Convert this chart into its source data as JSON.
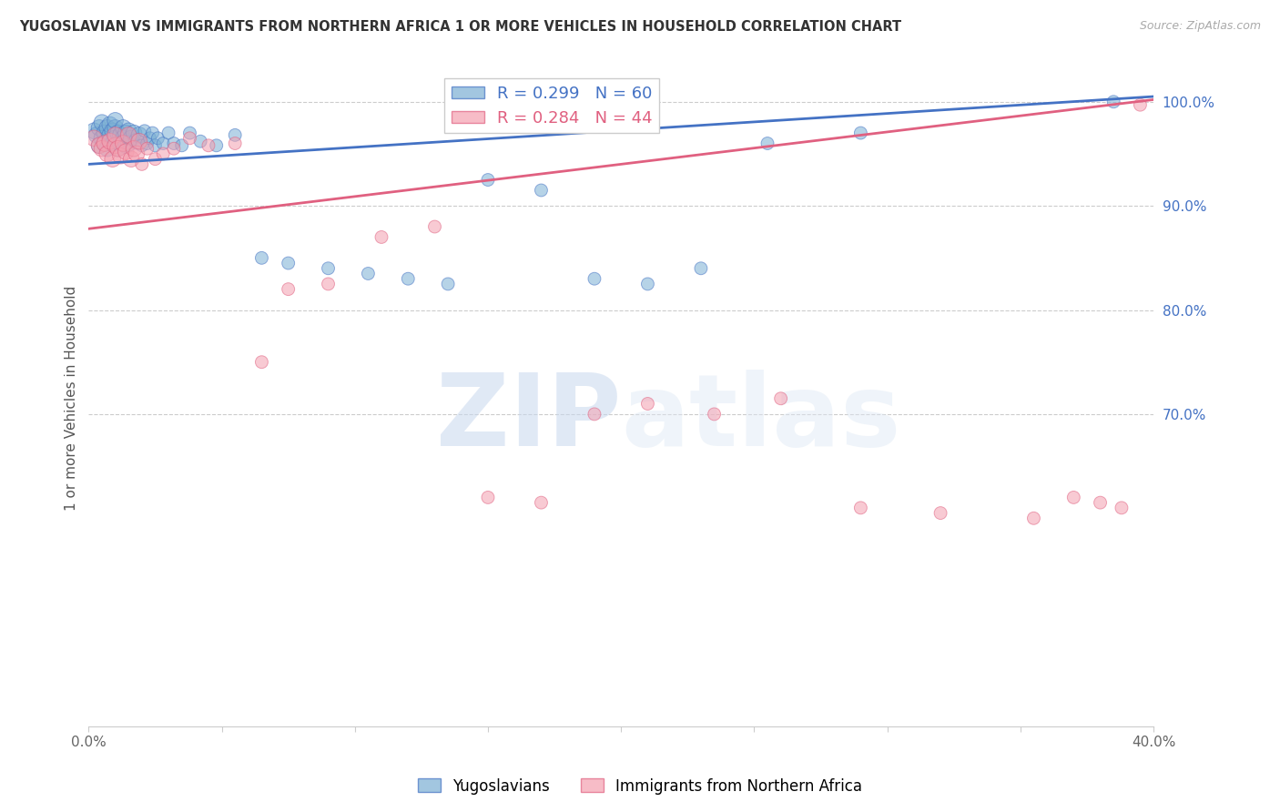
{
  "title": "YUGOSLAVIAN VS IMMIGRANTS FROM NORTHERN AFRICA 1 OR MORE VEHICLES IN HOUSEHOLD CORRELATION CHART",
  "source": "Source: ZipAtlas.com",
  "ylabel": "1 or more Vehicles in Household",
  "blue_label": "Yugoslavians",
  "pink_label": "Immigrants from Northern Africa",
  "blue_R": 0.299,
  "blue_N": 60,
  "pink_R": 0.284,
  "pink_N": 44,
  "xlim": [
    0.0,
    0.4
  ],
  "ylim": [
    0.4,
    1.03
  ],
  "xtick_positions": [
    0.0,
    0.05,
    0.1,
    0.15,
    0.2,
    0.25,
    0.3,
    0.35,
    0.4
  ],
  "xtick_labels": [
    "0.0%",
    "",
    "",
    "",
    "",
    "",
    "",
    "",
    "40.0%"
  ],
  "yticks_right": [
    1.0,
    0.9,
    0.8,
    0.7
  ],
  "ytick_labels_right": [
    "100.0%",
    "90.0%",
    "80.0%",
    "70.0%"
  ],
  "grid_color": "#cccccc",
  "background_color": "#ffffff",
  "blue_color": "#7bafd4",
  "pink_color": "#f4a0b0",
  "blue_line_color": "#4472c4",
  "pink_line_color": "#e06080",
  "watermark_zip": "ZIP",
  "watermark_atlas": "atlas",
  "blue_line_x": [
    0.0,
    0.4
  ],
  "blue_line_y": [
    0.94,
    1.005
  ],
  "pink_line_x": [
    0.0,
    0.4
  ],
  "pink_line_y": [
    0.878,
    1.002
  ],
  "blue_scatter_x": [
    0.002,
    0.003,
    0.004,
    0.004,
    0.005,
    0.005,
    0.006,
    0.006,
    0.007,
    0.007,
    0.008,
    0.008,
    0.009,
    0.009,
    0.01,
    0.01,
    0.01,
    0.011,
    0.011,
    0.012,
    0.012,
    0.013,
    0.013,
    0.014,
    0.014,
    0.015,
    0.015,
    0.016,
    0.017,
    0.018,
    0.019,
    0.02,
    0.021,
    0.022,
    0.023,
    0.024,
    0.025,
    0.026,
    0.028,
    0.03,
    0.032,
    0.035,
    0.038,
    0.042,
    0.048,
    0.055,
    0.065,
    0.075,
    0.09,
    0.105,
    0.12,
    0.135,
    0.15,
    0.17,
    0.19,
    0.21,
    0.23,
    0.255,
    0.29,
    0.385
  ],
  "blue_scatter_y": [
    0.972,
    0.968,
    0.975,
    0.958,
    0.965,
    0.98,
    0.97,
    0.96,
    0.975,
    0.955,
    0.968,
    0.978,
    0.972,
    0.96,
    0.975,
    0.965,
    0.982,
    0.97,
    0.955,
    0.968,
    0.96,
    0.975,
    0.965,
    0.97,
    0.958,
    0.972,
    0.96,
    0.965,
    0.97,
    0.962,
    0.968,
    0.958,
    0.972,
    0.96,
    0.965,
    0.97,
    0.958,
    0.965,
    0.96,
    0.97,
    0.96,
    0.958,
    0.97,
    0.962,
    0.958,
    0.968,
    0.85,
    0.845,
    0.84,
    0.835,
    0.83,
    0.825,
    0.925,
    0.915,
    0.83,
    0.825,
    0.84,
    0.96,
    0.97,
    1.0
  ],
  "pink_scatter_x": [
    0.002,
    0.004,
    0.005,
    0.006,
    0.007,
    0.008,
    0.009,
    0.01,
    0.01,
    0.011,
    0.012,
    0.013,
    0.014,
    0.015,
    0.016,
    0.017,
    0.018,
    0.019,
    0.02,
    0.022,
    0.025,
    0.028,
    0.032,
    0.038,
    0.045,
    0.055,
    0.065,
    0.075,
    0.09,
    0.11,
    0.13,
    0.15,
    0.17,
    0.19,
    0.21,
    0.235,
    0.26,
    0.29,
    0.32,
    0.355,
    0.37,
    0.38,
    0.388,
    0.395
  ],
  "pink_scatter_y": [
    0.965,
    0.958,
    0.955,
    0.96,
    0.95,
    0.962,
    0.945,
    0.958,
    0.968,
    0.955,
    0.948,
    0.96,
    0.952,
    0.968,
    0.945,
    0.955,
    0.95,
    0.962,
    0.94,
    0.955,
    0.945,
    0.95,
    0.955,
    0.965,
    0.958,
    0.96,
    0.75,
    0.82,
    0.825,
    0.87,
    0.88,
    0.62,
    0.615,
    0.7,
    0.71,
    0.7,
    0.715,
    0.61,
    0.605,
    0.6,
    0.62,
    0.615,
    0.61,
    0.997
  ]
}
